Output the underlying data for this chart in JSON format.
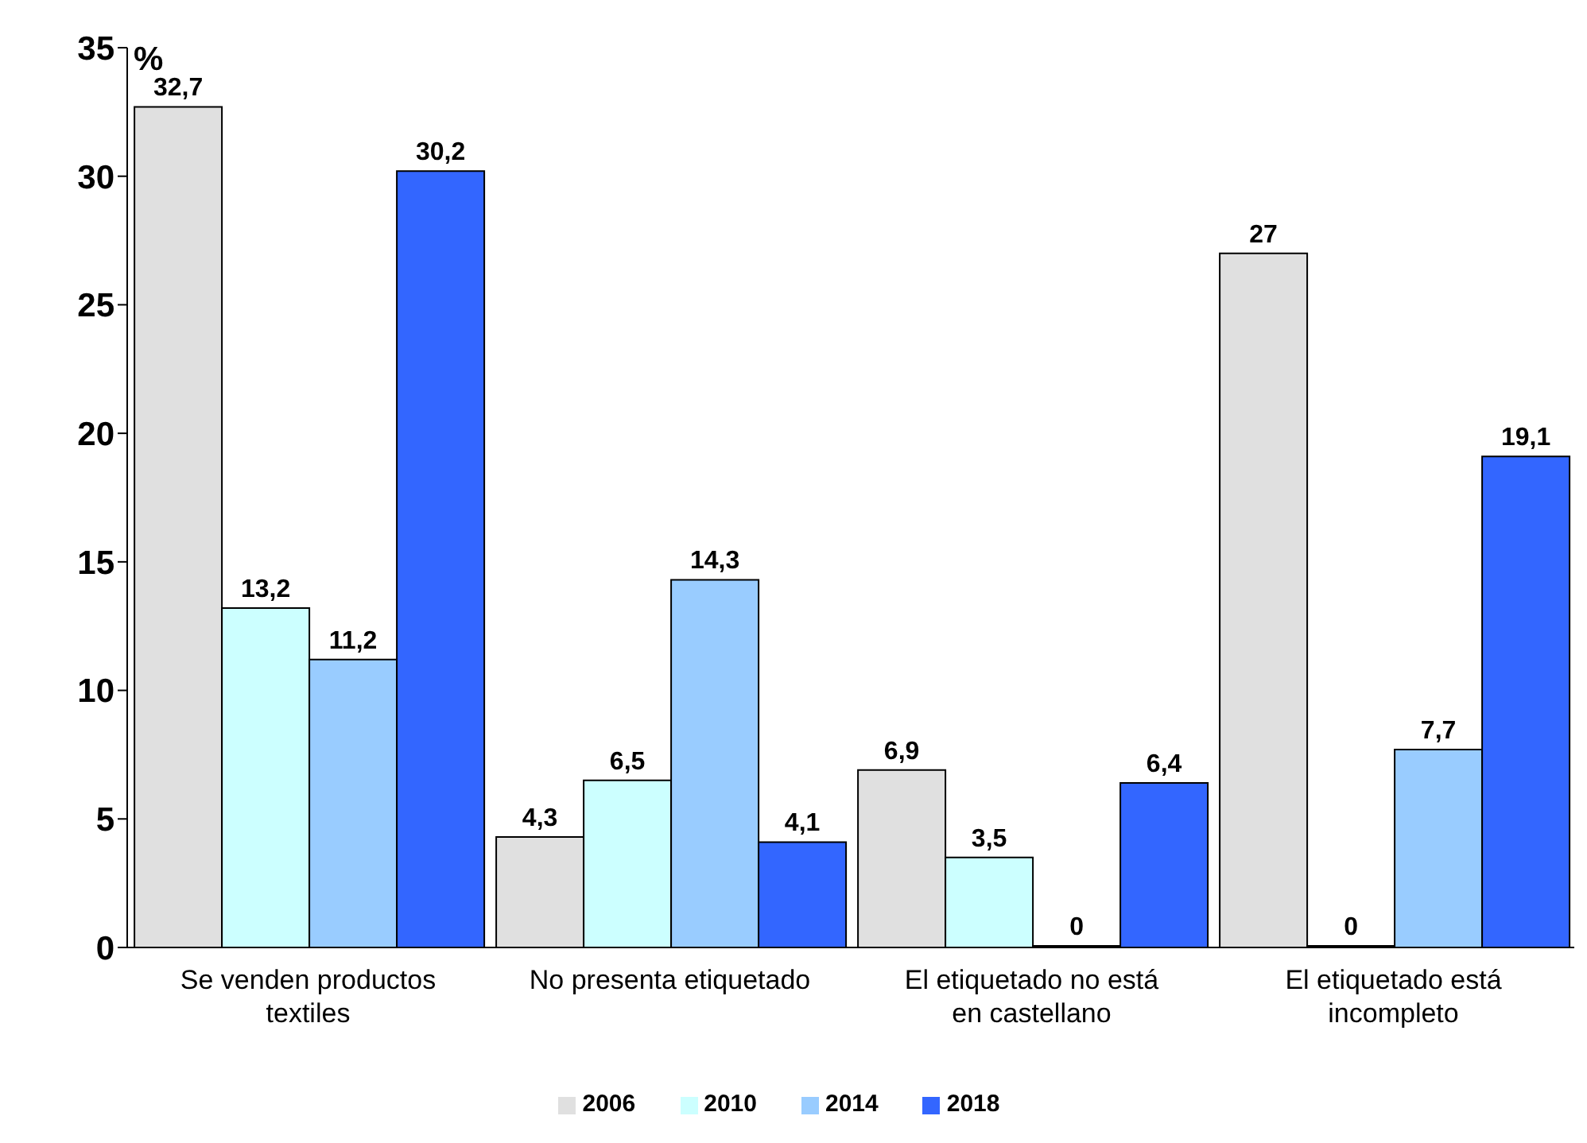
{
  "chart_data": {
    "type": "bar",
    "ylabel": "%",
    "categories": [
      "Se venden productos textiles",
      "No presenta etiquetado",
      "El etiquetado no está en castellano",
      "El etiquetado está incompleto"
    ],
    "series": [
      {
        "name": "2006",
        "color": "#e0e0e0",
        "values": [
          32.7,
          4.3,
          6.9,
          27
        ],
        "value_labels": [
          "32,7",
          "4,3",
          "6,9",
          "27"
        ]
      },
      {
        "name": "2010",
        "color": "#ccffff",
        "values": [
          13.2,
          6.5,
          3.5,
          0
        ],
        "value_labels": [
          "13,2",
          "6,5",
          "3,5",
          "0"
        ]
      },
      {
        "name": "2014",
        "color": "#99ccff",
        "values": [
          11.2,
          14.3,
          0,
          7.7
        ],
        "value_labels": [
          "11,2",
          "14,3",
          "0",
          "7,7"
        ]
      },
      {
        "name": "2018",
        "color": "#3366ff",
        "values": [
          30.2,
          4.1,
          6.4,
          19.1
        ],
        "value_labels": [
          "30,2",
          "4,1",
          "6,4",
          "19,1"
        ]
      }
    ],
    "ylim": [
      0,
      35
    ],
    "yticks": [
      0,
      5,
      10,
      15,
      20,
      25,
      30,
      35
    ],
    "grid": false,
    "legend": "bottom"
  }
}
